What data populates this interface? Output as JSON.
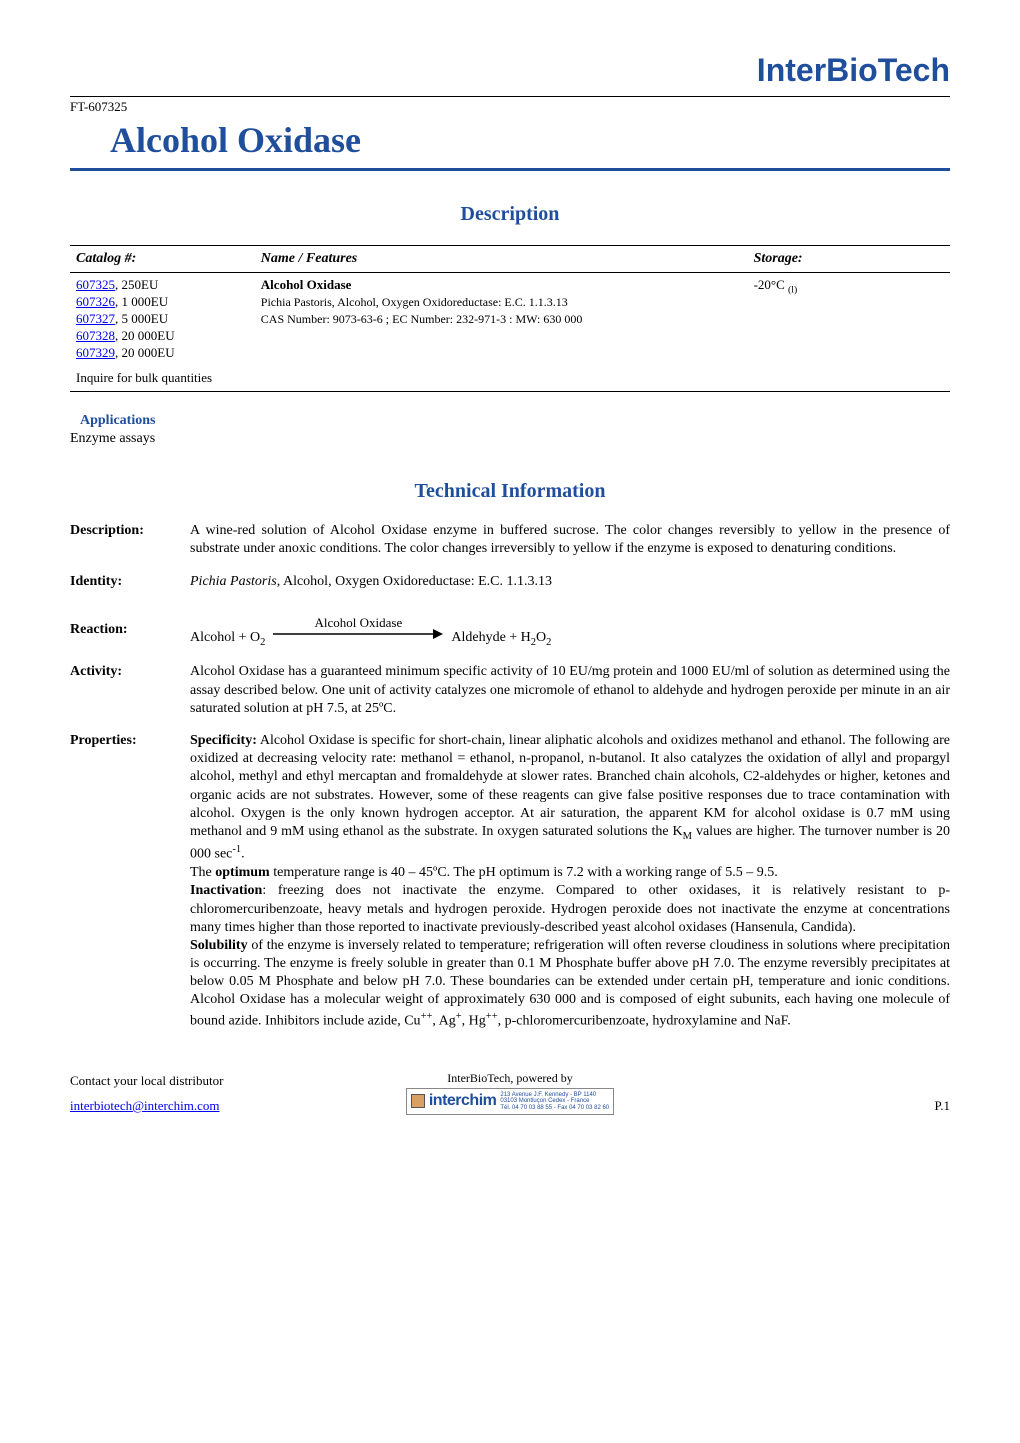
{
  "brand": "InterBioTech",
  "ft": "FT-607325",
  "title": "Alcohol Oxidase",
  "section_description": "Description",
  "section_technical": "Technical Information",
  "catalog": {
    "headers": {
      "c1": "Catalog #:",
      "c2": "Name / Features",
      "c3": "Storage:"
    },
    "rows": [
      {
        "link": "607325",
        "qty": ", 250EU"
      },
      {
        "link": "607326",
        "qty": ", 1 000EU"
      },
      {
        "link": "607327",
        "qty": ", 5 000EU"
      },
      {
        "link": "607328",
        "qty": ", 20 000EU"
      },
      {
        "link": "607329",
        "qty": ", 20 000EU"
      }
    ],
    "bulk": "Inquire for bulk quantities",
    "name_bold": "Alcohol Oxidase",
    "name_line2": "Pichia Pastoris, Alcohol, Oxygen Oxidoreductase: E.C. 1.1.3.13",
    "name_line3": "CAS Number: 9073-63-6 ; EC Number: 232-971-3 : MW: 630 000",
    "storage": "-20°C ",
    "storage_sub": "(l)"
  },
  "apps": {
    "head": "Applications",
    "body": "Enzyme assays"
  },
  "tech": [
    {
      "label": "Description:",
      "text": "A wine-red solution of Alcohol Oxidase enzyme in buffered sucrose. The color changes reversibly to yellow in the presence of substrate under anoxic conditions.  The color changes irreversibly to yellow if the enzyme is exposed to denaturing conditions."
    },
    {
      "label": "Identity:",
      "html": "<i>Pichia Pastoris</i>, Alcohol, Oxygen Oxidoreductase: E.C. 1.1.3.13"
    },
    {
      "label": "Reaction:",
      "reaction": {
        "left": "Alcohol + O",
        "left_sub": "2",
        "arrow_label": "Alcohol Oxidase",
        "right_pre": "Aldehyde + H",
        "right_sub1": "2",
        "right_mid": "O",
        "right_sub2": "2"
      }
    },
    {
      "label": "Activity:",
      "text": "Alcohol Oxidase has a guaranteed minimum specific activity of 10 EU/mg protein and 1000 EU/ml of solution as determined using the assay described below. One unit of activity catalyzes one micromole of ethanol to aldehyde and hydrogen peroxide per minute in an air saturated solution at pH 7.5, at 25ºC."
    },
    {
      "label": "Properties:",
      "html": "<b>Specificity:</b> Alcohol Oxidase is specific for short-chain, linear aliphatic alcohols and oxidizes methanol and ethanol.  The following are oxidized at decreasing velocity rate: methanol = ethanol, n-propanol, n-butanol. It also catalyzes the oxidation of allyl and propargyl alcohol, methyl and ethyl mercaptan and fromaldehyde at slower rates. Branched chain alcohols, C2-aldehydes or higher, ketones and organic acids are not substrates. However, some of these reagents can give false positive responses due to trace contamination with alcohol. Oxygen is the only known hydrogen acceptor. At air saturation, the apparent KM for alcohol oxidase is 0.7 mM using methanol and 9 mM using ethanol as the substrate. In oxygen saturated solutions the K<sub>M</sub> values are higher. The turnover number is 20 000 sec<sup>-1</sup>.<br>The <b>optimum</b> temperature range is 40 – 45ºC. The pH optimum is 7.2 with a working range of 5.5 – 9.5.<br><b>Inactivation</b>: freezing does not inactivate the enzyme.  Compared to other oxidases, it is relatively resistant to p-chloromercuribenzoate, heavy metals and hydrogen peroxide. Hydrogen peroxide does not inactivate the enzyme at concentrations many times higher than those reported to inactivate previously-described yeast alcohol oxidases (Hansenula, Candida).<br><b>Solubility</b> of the enzyme is inversely related to temperature; refrigeration will often reverse cloudiness in solutions where precipitation is occurring.  The enzyme is freely soluble in greater than 0.1 M Phosphate buffer above pH 7.0.  The enzyme reversibly precipitates at below 0.05 M Phosphate and below pH 7.0.  These boundaries can be extended under certain pH, temperature and ionic conditions.  Alcohol Oxidase has a molecular weight of approximately 630 000 and is composed of eight subunits, each having one molecule of bound azide.  Inhibitors include azide, Cu<sup>++</sup>, Ag<sup>+</sup>, Hg<sup>++</sup>, p-chloromercuribenzoate, hydroxylamine and NaF."
    }
  ],
  "footer": {
    "left1": "Contact your local distributor",
    "left_email": "interbiotech@interchim.com",
    "center1": "InterBioTech, powered by",
    "logo_text": "interchim",
    "logo_addr1": "213 Avenue J.F. Kennedy - BP 1140",
    "logo_addr2": "03103 Montluçon Cedex - France",
    "logo_addr3": "Tél. 04 70 03 88 55 - Fax 04 70 03 82 60",
    "right": "P.1"
  },
  "colors": {
    "brand_blue": "#1f4e9c",
    "link_blue": "#0000ee",
    "text_black": "#000000",
    "bg": "#ffffff"
  }
}
